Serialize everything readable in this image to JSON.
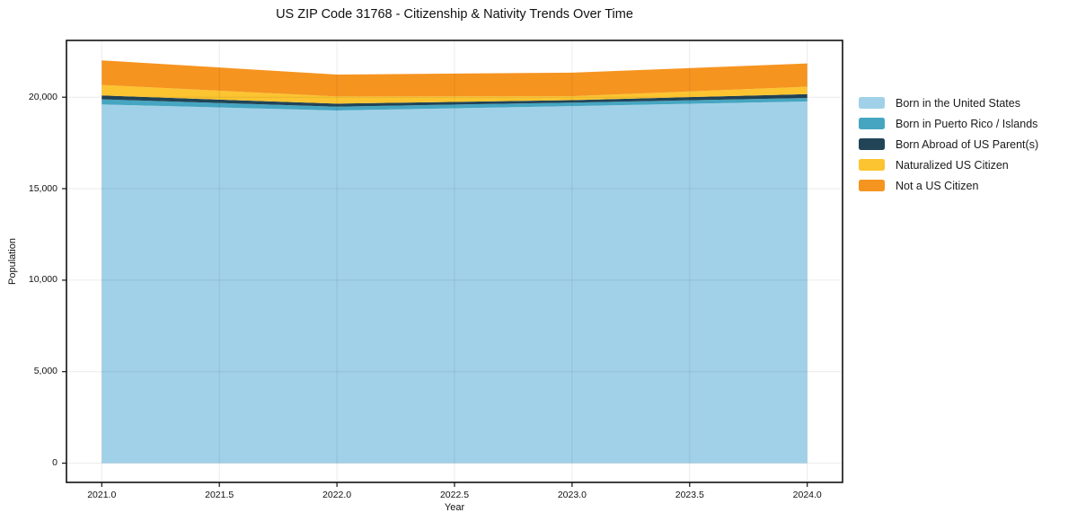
{
  "chart_data": {
    "type": "area",
    "stacked": true,
    "title": "US ZIP Code 31768 - Citizenship & Nativity Trends Over Time",
    "xlabel": "Year",
    "ylabel": "Population",
    "x": [
      2021,
      2022,
      2023,
      2024
    ],
    "series": [
      {
        "name": "Born in the United States",
        "color": "#a1d1e8",
        "values": [
          19600,
          19270,
          19510,
          19760
        ]
      },
      {
        "name": "Born in Puerto Rico / Islands",
        "color": "#46a6c1",
        "values": [
          280,
          210,
          195,
          195
        ]
      },
      {
        "name": "Born Abroad of US Parent(s)",
        "color": "#214457",
        "values": [
          210,
          165,
          130,
          210
        ]
      },
      {
        "name": "Naturalized US Citizen",
        "color": "#fcc430",
        "values": [
          575,
          390,
          215,
          405
        ]
      },
      {
        "name": "Not a US Citizen",
        "color": "#f69420",
        "values": [
          1345,
          1200,
          1290,
          1275
        ]
      }
    ],
    "xticks": [
      2021.0,
      2021.5,
      2022.0,
      2022.5,
      2023.0,
      2023.5,
      2024.0
    ],
    "xtick_labels": [
      "2021.0",
      "2021.5",
      "2022.0",
      "2022.5",
      "2023.0",
      "2023.5",
      "2024.0"
    ],
    "yticks": [
      0,
      5000,
      10000,
      15000,
      20000
    ],
    "ytick_labels": [
      "0",
      "5,000",
      "10,000",
      "15,000",
      "20,000"
    ],
    "xlim": [
      2020.85,
      2024.15
    ],
    "ylim": [
      -1050,
      23100
    ],
    "grid": true,
    "legend_position": "right",
    "axis_color": "#111111",
    "grid_color": "rgba(0,0,0,0.08)"
  }
}
